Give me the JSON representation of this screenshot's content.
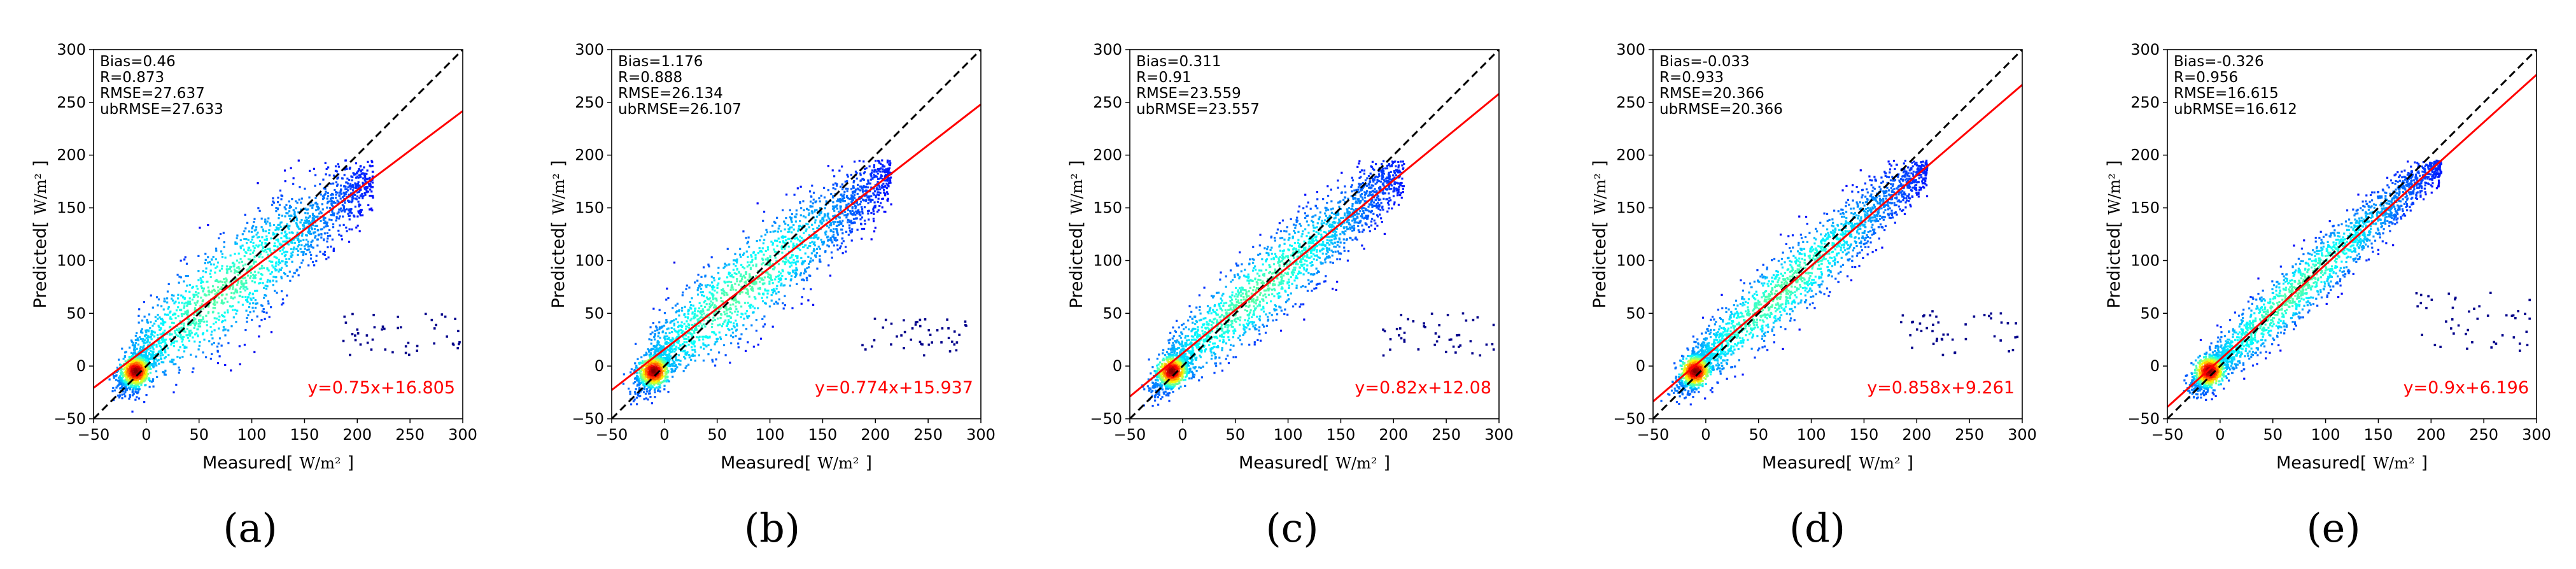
{
  "colors": {
    "fit_line": "#ff0000",
    "one_to_one": "#000000",
    "equation_text": "#ff0000",
    "density_low": "#00008b",
    "density_high": "#ff0000"
  },
  "chart_data": [
    {
      "type": "scatter",
      "panel_label": "(a)",
      "xlabel": "Measured[",
      "ylabel": "Predicted[",
      "unit": "W/m²",
      "unit_close": "]",
      "xlim": [
        -50,
        300
      ],
      "ylim": [
        -50,
        300
      ],
      "xticks": [
        -50,
        0,
        50,
        100,
        150,
        200,
        250,
        300
      ],
      "yticks": [
        -50,
        0,
        50,
        100,
        150,
        200,
        250,
        300
      ],
      "stats": [
        "Bias=0.46",
        "R=0.873",
        "RMSE=27.637",
        "ubRMSE=27.633"
      ],
      "fit": {
        "slope": 0.75,
        "intercept": 16.805,
        "label": "y=0.75x+16.805"
      },
      "one_to_one": true,
      "cloud": {
        "x_range": [
          -30,
          215
        ],
        "spread": 42,
        "outlier_y": [
          10,
          50
        ]
      }
    },
    {
      "type": "scatter",
      "panel_label": "(b)",
      "xlabel": "Measured[",
      "ylabel": "Predicted[",
      "unit": "W/m²",
      "unit_close": "]",
      "xlim": [
        -50,
        300
      ],
      "ylim": [
        -50,
        300
      ],
      "xticks": [
        -50,
        0,
        50,
        100,
        150,
        200,
        250,
        300
      ],
      "yticks": [
        -50,
        0,
        50,
        100,
        150,
        200,
        250,
        300
      ],
      "stats": [
        "Bias=1.176",
        "R=0.888",
        "RMSE=26.134",
        "ubRMSE=26.107"
      ],
      "fit": {
        "slope": 0.774,
        "intercept": 15.937,
        "label": "y=0.774x+15.937"
      },
      "one_to_one": true,
      "cloud": {
        "x_range": [
          -30,
          215
        ],
        "spread": 39,
        "outlier_y": [
          10,
          45
        ]
      }
    },
    {
      "type": "scatter",
      "panel_label": "(c)",
      "xlabel": "Measured[",
      "ylabel": "Predicted[",
      "unit": "W/m²",
      "unit_close": "]",
      "xlim": [
        -50,
        300
      ],
      "ylim": [
        -50,
        300
      ],
      "xticks": [
        -50,
        0,
        50,
        100,
        150,
        200,
        250,
        300
      ],
      "yticks": [
        -50,
        0,
        50,
        100,
        150,
        200,
        250,
        300
      ],
      "stats": [
        "Bias=0.311",
        "R=0.91",
        "RMSE=23.559",
        "ubRMSE=23.557"
      ],
      "fit": {
        "slope": 0.82,
        "intercept": 12.08,
        "label": "y=0.82x+12.08"
      },
      "one_to_one": true,
      "cloud": {
        "x_range": [
          -30,
          210
        ],
        "spread": 34,
        "outlier_y": [
          10,
          50
        ]
      }
    },
    {
      "type": "scatter",
      "panel_label": "(d)",
      "xlabel": "Measured[",
      "ylabel": "Predicted[",
      "unit": "W/m²",
      "unit_close": "]",
      "xlim": [
        -50,
        300
      ],
      "ylim": [
        -50,
        300
      ],
      "xticks": [
        -50,
        0,
        50,
        100,
        150,
        200,
        250,
        300
      ],
      "yticks": [
        -50,
        0,
        50,
        100,
        150,
        200,
        250,
        300
      ],
      "stats": [
        "Bias=-0.033",
        "R=0.933",
        "RMSE=20.366",
        "ubRMSE=20.366"
      ],
      "fit": {
        "slope": 0.858,
        "intercept": 9.261,
        "label": "y=0.858x+9.261"
      },
      "one_to_one": true,
      "cloud": {
        "x_range": [
          -30,
          210
        ],
        "spread": 30,
        "outlier_y": [
          10,
          55
        ]
      }
    },
    {
      "type": "scatter",
      "panel_label": "(e)",
      "xlabel": "Measured[",
      "ylabel": "Predicted[",
      "unit": "W/m²",
      "unit_close": "]",
      "xlim": [
        -50,
        300
      ],
      "ylim": [
        -50,
        300
      ],
      "xticks": [
        -50,
        0,
        50,
        100,
        150,
        200,
        250,
        300
      ],
      "yticks": [
        -50,
        0,
        50,
        100,
        150,
        200,
        250,
        300
      ],
      "stats": [
        "Bias=-0.326",
        "R=0.956",
        "RMSE=16.615",
        "ubRMSE=16.612"
      ],
      "fit": {
        "slope": 0.9,
        "intercept": 6.196,
        "label": "y=0.9x+6.196"
      },
      "one_to_one": true,
      "cloud": {
        "x_range": [
          -30,
          210
        ],
        "spread": 25,
        "outlier_y": [
          10,
          70
        ]
      }
    }
  ]
}
